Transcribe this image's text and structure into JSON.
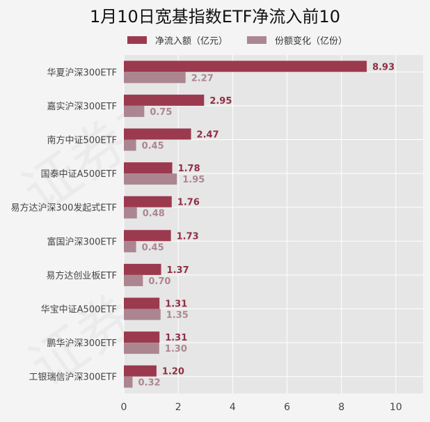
{
  "title": "1月10日宽基指数ETF净流入前10",
  "watermark": "证券之星",
  "colors": {
    "page_bg": "#f4f4f4",
    "plot_bg": "#e6e6e6",
    "grid": "#ffffff",
    "series1": "#9b3a4e",
    "series2": "#ab8690",
    "label1": "#8f2f44",
    "label2": "#ab8690"
  },
  "chart_data": {
    "type": "bar",
    "orientation": "horizontal",
    "title": "1月10日宽基指数ETF净流入前10",
    "categories": [
      "华夏沪深300ETF",
      "嘉实沪深300ETF",
      "南方中证500ETF",
      "国泰中证A500ETF",
      "易方达沪深300发起式ETF",
      "富国沪深300ETF",
      "易方达创业板ETF",
      "华宝中证A500ETF",
      "鹏华沪深300ETF",
      "工银瑞信沪深300ETF"
    ],
    "series": [
      {
        "name": "净流入额（亿元）",
        "values": [
          8.93,
          2.95,
          2.47,
          1.78,
          1.76,
          1.73,
          1.37,
          1.31,
          1.31,
          1.2
        ]
      },
      {
        "name": "份额变化（亿份）",
        "values": [
          2.27,
          0.75,
          0.45,
          1.95,
          0.48,
          0.45,
          0.7,
          1.35,
          1.3,
          0.32
        ]
      }
    ],
    "xlim": [
      0,
      11
    ],
    "xticks": [
      0,
      2,
      4,
      6,
      8,
      10
    ],
    "grid": true,
    "legend_position": "top"
  }
}
